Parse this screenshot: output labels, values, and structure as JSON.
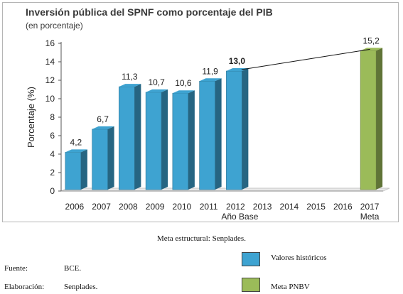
{
  "chart_data": {
    "type": "bar",
    "title": "Inversión pública del SPNF  como porcentaje del PIB",
    "subtitle": "(en porcentaje)",
    "ylabel": "Porcentaje (%)",
    "ylim": [
      0,
      16
    ],
    "yticks": [
      "0",
      "2",
      "4",
      "6",
      "8",
      "10",
      "12",
      "14",
      "16"
    ],
    "categories": [
      "2006",
      "2007",
      "2008",
      "2009",
      "2010",
      "2011",
      "2012",
      "2013",
      "2014",
      "2015",
      "2016",
      "2017"
    ],
    "category_sublabels": {
      "2012": "Año Base",
      "2017": "Meta"
    },
    "series": [
      {
        "name": "Valores históricos",
        "color": "#3ea3d1",
        "values": [
          4.2,
          6.7,
          11.3,
          10.7,
          10.6,
          11.9,
          13.0,
          null,
          null,
          null,
          null,
          null
        ]
      },
      {
        "name": "Meta PNBV",
        "color": "#9bbb59",
        "values": [
          null,
          null,
          null,
          null,
          null,
          null,
          null,
          null,
          null,
          null,
          null,
          15.2
        ]
      }
    ],
    "data_labels": [
      "4,2",
      "6,7",
      "11,3",
      "10,7",
      "10,6",
      "11,9",
      "13,0",
      "",
      "",
      "",
      "",
      "15,2"
    ],
    "trend_line": {
      "from": "2012",
      "to": "2017"
    },
    "grid": false,
    "legend": "bottom-right"
  },
  "note": "Meta estructural: Senplades.",
  "source": {
    "label": "Fuente:",
    "value": "BCE."
  },
  "elaboration": {
    "label": "Elaboración:",
    "value": "Senplades."
  },
  "legend": [
    {
      "label": "Valores históricos",
      "color": "#3ea3d1"
    },
    {
      "label": "Meta PNBV",
      "color": "#9bbb59"
    }
  ]
}
